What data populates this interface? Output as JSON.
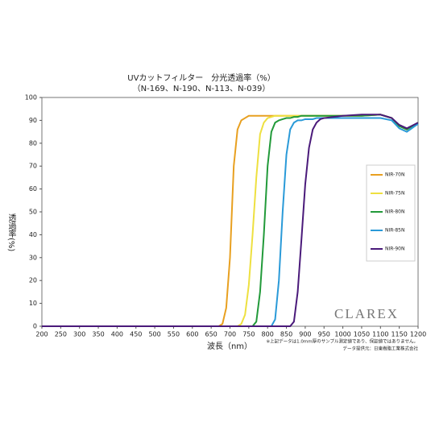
{
  "chart_data": {
    "type": "line",
    "title": "UVカットフィルター　分光透過率（%）",
    "subtitle": "（N-169、N-190、N-113、N-039）",
    "y_label": "透過率(%)",
    "x_label": "波長（nm）",
    "annotations": [
      "※上記データは1.0mm厚のサンプル測定値であり、保証値ではありません。",
      "データ提供元：日東樹脂工業株式会社",
      "CLAREX"
    ],
    "x": [
      200,
      650,
      670,
      680,
      690,
      700,
      710,
      720,
      730,
      740,
      750,
      760,
      770,
      780,
      790,
      800,
      810,
      820,
      830,
      840,
      850,
      860,
      870,
      880,
      890,
      900,
      910,
      920,
      930,
      940,
      950,
      1000,
      1050,
      1100,
      1130,
      1150,
      1170,
      1200
    ],
    "series": [
      {
        "name": "NIR-70N",
        "color": "#e8a020",
        "values": [
          0,
          0,
          0,
          1,
          8,
          30,
          70,
          86,
          90,
          91,
          92,
          92,
          92,
          92,
          92,
          92,
          92,
          92,
          92,
          92,
          92,
          92,
          92,
          92,
          92,
          92,
          92,
          92,
          92,
          92,
          92,
          92,
          92,
          92.5,
          91,
          87.5,
          86,
          89
        ]
      },
      {
        "name": "NIR-75N",
        "color": "#eee040",
        "values": [
          0,
          0,
          0,
          0,
          0,
          0,
          0,
          0,
          1,
          5,
          18,
          40,
          65,
          84,
          89,
          91,
          91.5,
          92,
          92,
          92,
          92,
          92,
          92,
          92,
          92,
          92,
          92,
          92,
          92,
          92,
          92,
          92,
          92,
          92.5,
          91,
          87.5,
          86,
          89
        ]
      },
      {
        "name": "NIR-80N",
        "color": "#229a3a",
        "values": [
          0,
          0,
          0,
          0,
          0,
          0,
          0,
          0,
          0,
          0,
          0,
          0,
          2,
          15,
          40,
          70,
          85,
          89,
          90,
          90.5,
          91,
          91,
          91.5,
          91.5,
          92,
          92,
          92,
          92,
          92,
          92,
          92,
          92,
          92,
          92.5,
          91,
          87.5,
          86,
          89
        ]
      },
      {
        "name": "NIR-85N",
        "color": "#2a9ad8",
        "values": [
          0,
          0,
          0,
          0,
          0,
          0,
          0,
          0,
          0,
          0,
          0,
          0,
          0,
          0,
          0,
          0,
          0,
          3,
          20,
          50,
          75,
          86,
          89,
          90,
          90,
          90.5,
          90.5,
          90.5,
          91,
          91,
          91,
          91,
          91,
          91,
          90,
          86.5,
          85,
          88.5
        ]
      },
      {
        "name": "NIR-90N",
        "color": "#4a1a7a",
        "values": [
          0,
          0,
          0,
          0,
          0,
          0,
          0,
          0,
          0,
          0,
          0,
          0,
          0,
          0,
          0,
          0,
          0,
          0,
          0,
          0,
          0,
          0,
          2,
          15,
          38,
          62,
          78,
          86,
          89,
          90.5,
          91,
          92,
          92.5,
          92.5,
          91,
          88,
          86.5,
          89
        ]
      }
    ],
    "xlim": [
      200,
      1200
    ],
    "xticks": [
      200,
      250,
      300,
      350,
      400,
      450,
      500,
      550,
      600,
      650,
      700,
      750,
      800,
      850,
      900,
      950,
      1000,
      1050,
      1100,
      1150,
      1200
    ],
    "ylim": [
      0,
      100
    ],
    "yticks": [
      0,
      10,
      20,
      30,
      40,
      50,
      60,
      70,
      80,
      90,
      100
    ],
    "grid": false,
    "legend": "right"
  }
}
